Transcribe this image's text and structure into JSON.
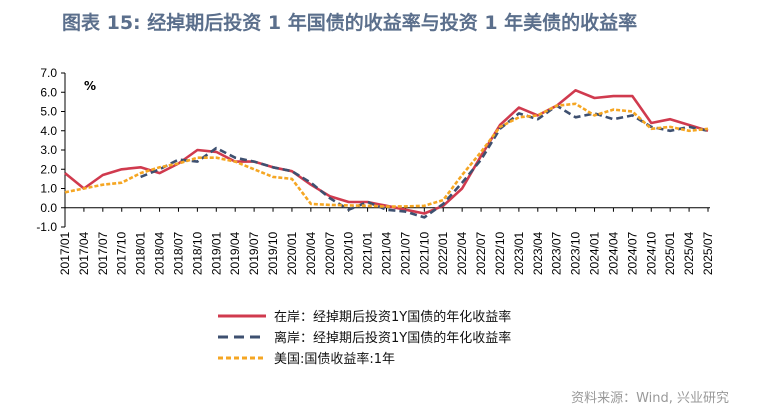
{
  "title": "图表 15: 经掉期后投资 1 年国债的收益率与投资 1 年美债的收益率",
  "source": "资料来源：Wind, 兴业研究",
  "chart_data": {
    "type": "line",
    "title": "图表 15: 经掉期后投资 1 年国债的收益率与投资 1 年美债的收益率",
    "ylabel": "%",
    "ylim": [
      -1.0,
      7.0
    ],
    "yticks": [
      "7.0",
      "6.0",
      "5.0",
      "4.0",
      "3.0",
      "2.0",
      "1.0",
      "0.0",
      "-1.0"
    ],
    "grid": false,
    "legend_position": "bottom",
    "x": [
      "2017/01",
      "2017/04",
      "2017/07",
      "2017/10",
      "2018/01",
      "2018/04",
      "2018/07",
      "2018/10",
      "2019/01",
      "2019/04",
      "2019/07",
      "2019/10",
      "2020/01",
      "2020/04",
      "2020/07",
      "2020/10",
      "2021/01",
      "2021/04",
      "2021/07",
      "2021/10",
      "2022/01",
      "2022/04",
      "2022/07",
      "2022/10",
      "2023/01",
      "2023/04",
      "2023/07",
      "2023/10",
      "2024/01",
      "2024/04",
      "2024/07",
      "2024/10",
      "2025/01",
      "2025/04",
      "2025/07"
    ],
    "series": [
      {
        "name": "在岸：经掉期后投资1Y国债的年化收益率",
        "color": "#d03a4e",
        "style": "solid",
        "values": [
          1.8,
          1.0,
          1.7,
          2.0,
          2.1,
          1.8,
          2.3,
          3.0,
          2.9,
          2.4,
          2.4,
          2.1,
          1.9,
          1.2,
          0.6,
          0.3,
          0.3,
          0.1,
          -0.1,
          -0.3,
          0.1,
          1.0,
          2.7,
          4.3,
          5.2,
          4.8,
          5.3,
          6.1,
          5.7,
          5.8,
          5.8,
          4.4,
          4.6,
          4.3,
          4.0
        ]
      },
      {
        "name": "离岸：经掉期后投资1Y国债的年化收益率",
        "color": "#3e5070",
        "style": "dashed",
        "values": [
          null,
          null,
          null,
          null,
          1.6,
          2.0,
          2.5,
          2.4,
          3.1,
          2.6,
          2.4,
          2.1,
          1.9,
          1.3,
          0.5,
          -0.1,
          0.3,
          -0.1,
          -0.2,
          -0.5,
          0.2,
          1.3,
          2.5,
          4.1,
          4.9,
          4.6,
          5.3,
          4.7,
          4.9,
          4.6,
          4.8,
          4.2,
          4.0,
          4.2,
          4.0
        ]
      },
      {
        "name": "美国:国债收益率:1年",
        "color": "#f5a623",
        "style": "dotted",
        "values": [
          0.8,
          1.0,
          1.2,
          1.3,
          1.8,
          2.1,
          2.3,
          2.6,
          2.6,
          2.4,
          2.0,
          1.6,
          1.5,
          0.2,
          0.15,
          0.12,
          0.1,
          0.06,
          0.07,
          0.1,
          0.4,
          1.7,
          2.9,
          4.2,
          4.7,
          4.8,
          5.3,
          5.4,
          4.8,
          5.1,
          5.0,
          4.1,
          4.2,
          4.0,
          4.1
        ]
      }
    ]
  }
}
